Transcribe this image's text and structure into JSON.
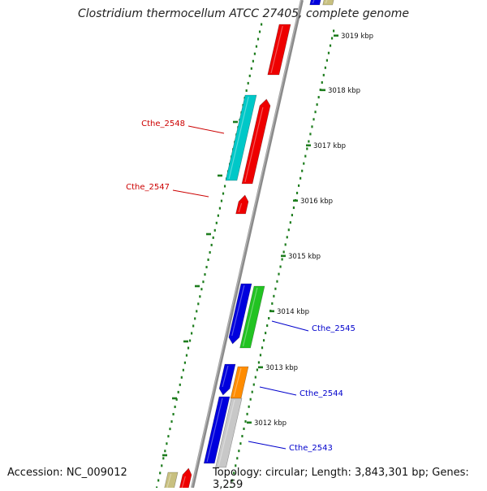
{
  "title": "Clostridium thermocellum ATCC 27405, complete genome",
  "accession": "Accession: NC_009012",
  "topology": "Topology: circular; Length: 3,843,301 bp; Genes: 3,259",
  "colors": {
    "backbone": "#8a8a8a",
    "ticks": "#1e7d1e",
    "red": "#ee0000",
    "cyan": "#00c8c8",
    "blue": "#0000dd",
    "green": "#22c322",
    "orange": "#ff8c00",
    "gray": "#c8c8c8",
    "khaki": "#c8c080",
    "label_red": "#cc0000",
    "label_blue": "#0000cc"
  },
  "ticks": [
    {
      "label": "3019 kbp"
    },
    {
      "label": "3018 kbp"
    },
    {
      "label": "3017 kbp"
    },
    {
      "label": "3016 kbp"
    },
    {
      "label": "3015 kbp"
    },
    {
      "label": "3014 kbp"
    },
    {
      "label": "3013 kbp"
    },
    {
      "label": "3012 kbp"
    }
  ],
  "gene_labels": [
    {
      "text": "Cthe_2548",
      "color": "red"
    },
    {
      "text": "Cthe_2547",
      "color": "red"
    },
    {
      "text": "Cthe_2545",
      "color": "blue"
    },
    {
      "text": "Cthe_2544",
      "color": "blue"
    },
    {
      "text": "Cthe_2543",
      "color": "blue"
    }
  ]
}
